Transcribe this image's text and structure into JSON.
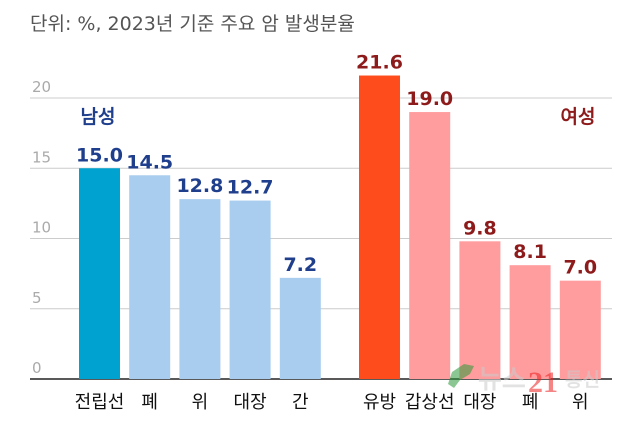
{
  "chart_data": {
    "type": "bar",
    "title": "단위: %, 2023년 기준 주요 암 발생분율",
    "ylim": [
      0,
      20
    ],
    "yticks": [
      "0",
      "5",
      "10",
      "15",
      "20"
    ],
    "ytick_values": [
      0,
      5,
      10,
      15,
      20
    ],
    "grid": true,
    "groups": [
      {
        "name": "남성",
        "label_color": "#1F3E8C",
        "categories": [
          "전립선",
          "폐",
          "위",
          "대장",
          "간"
        ],
        "values": [
          15.0,
          14.5,
          12.8,
          12.7,
          7.2
        ],
        "value_labels": [
          "15.0",
          "14.5",
          "12.8",
          "12.7",
          "7.2"
        ],
        "colors": [
          "#00A3D0",
          "#A8CDEE",
          "#A8CDEE",
          "#A8CDEE",
          "#A8CDEE"
        ]
      },
      {
        "name": "여성",
        "label_color": "#8E1B1B",
        "categories": [
          "유방",
          "갑상선",
          "대장",
          "폐",
          "위"
        ],
        "values": [
          21.6,
          19.0,
          9.8,
          8.1,
          7.0
        ],
        "value_labels": [
          "21.6",
          "19.0",
          "9.8",
          "8.1",
          "7.0"
        ],
        "colors": [
          "#FF4C1C",
          "#FF9C9E",
          "#FF9C9E",
          "#FF9C9E",
          "#FF9C9E"
        ]
      }
    ]
  },
  "watermark": "뉴스21통신"
}
